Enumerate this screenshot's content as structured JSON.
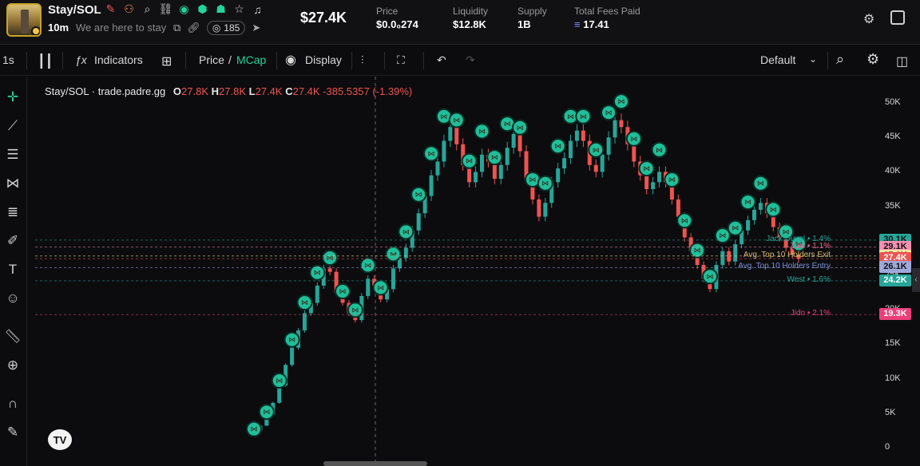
{
  "header": {
    "pair": "Stay/SOL",
    "timeframe": "10m",
    "tagline": "We are here to stay",
    "viewers": "185",
    "market_cap": "$27.4K",
    "stats": [
      {
        "label": "Price",
        "value": "$0.0₀274"
      },
      {
        "label": "Liquidity",
        "value": "$12.8K"
      },
      {
        "label": "Supply",
        "value": "1B"
      },
      {
        "label": "Total Fees Paid",
        "value": "17.41"
      }
    ]
  },
  "toolbar": {
    "interval": "1s",
    "indicators": "Indicators",
    "price_label": "Price",
    "divider": "/",
    "mcap_label": "MCap",
    "display": "Display",
    "layout": "Default"
  },
  "colors": {
    "up": "#26a69a",
    "down": "#ef5350",
    "accent": "#22d39a",
    "bg": "#0c0c0e"
  },
  "legend": {
    "title": "Stay/SOL · trade.padre.gg",
    "o_label": "O",
    "o": "27.8K",
    "h_label": "H",
    "h": "27.8K",
    "l_label": "L",
    "l": "27.4K",
    "c_label": "C",
    "c": "27.4K",
    "change": "-385.5357 (-1.39%)"
  },
  "chart_data": {
    "type": "candlestick",
    "y_ticks": [
      "50K",
      "45K",
      "40K",
      "35K",
      "30K",
      "25K",
      "20K",
      "15K",
      "10K",
      "5K",
      "0"
    ],
    "ylim": [
      0,
      52000
    ],
    "series_close": [
      2500,
      3200,
      4800,
      6500,
      9000,
      12000,
      14500,
      17000,
      19500,
      21000,
      23500,
      26000,
      25500,
      22500,
      21000,
      19500,
      18500,
      22000,
      24500,
      23500,
      21500,
      23000,
      26000,
      27500,
      29000,
      31500,
      34000,
      36500,
      39500,
      41500,
      44500,
      46500,
      44000,
      41000,
      38500,
      40000,
      42500,
      41500,
      39000,
      41000,
      43500,
      45500,
      43000,
      39000,
      36000,
      33500,
      35500,
      38500,
      40500,
      42000,
      44500,
      46000,
      44500,
      41000,
      40000,
      42500,
      45000,
      47500,
      46500,
      44000,
      41500,
      39500,
      37500,
      38500,
      40000,
      38500,
      36000,
      33500,
      30500,
      28500,
      26500,
      24500,
      23000,
      26500,
      28500,
      27000,
      29500,
      31500,
      33000,
      34500,
      35500,
      34000,
      32000,
      30500,
      29000,
      28000,
      27400
    ],
    "price_lines": [
      {
        "price": "30.1K",
        "color": "#26a69a",
        "text": "#111",
        "y": 30100
      },
      {
        "price": "29.1K",
        "color": "#f48fb1",
        "text": "#111",
        "y": 29100
      },
      {
        "price": "27.8K",
        "color": "#f9e79f",
        "text": "#111",
        "y": 27800
      },
      {
        "price": "27.4K",
        "color": "#ef5350",
        "text": "#fff",
        "y": 27400
      },
      {
        "price": "26.1K",
        "color": "#9fa8da",
        "text": "#111",
        "y": 26100
      },
      {
        "price": "24.2K",
        "color": "#26a69a",
        "text": "#fff",
        "y": 24200
      },
      {
        "price": "19.3K",
        "color": "#ec407a",
        "text": "#fff",
        "y": 19300
      }
    ],
    "holder_labels": [
      {
        "text": "Jack Duval • 1.4%",
        "color": "#26a69a",
        "y": 30100
      },
      {
        "text": "Zuki • 1.1%",
        "color": "#f06292",
        "y": 29100
      },
      {
        "text": "Avg. Top 10 Holders Exit",
        "color": "#d8b86a",
        "y": 27800
      },
      {
        "text": "Avg. Top 10 Holders Entry",
        "color": "#7f8fd6",
        "y": 26100
      },
      {
        "text": "West • 1.6%",
        "color": "#26a69a",
        "y": 24200
      },
      {
        "text": "Jidn • 2.1%",
        "color": "#ec407a",
        "y": 19300
      }
    ]
  },
  "tv_logo": "TV"
}
